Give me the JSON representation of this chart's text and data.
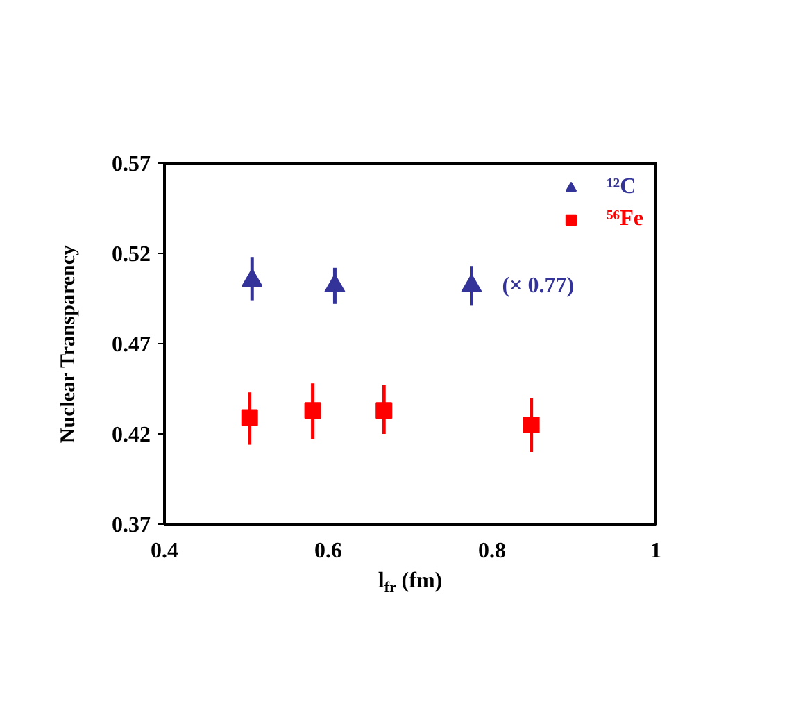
{
  "chart_data": {
    "type": "scatter",
    "xlabel": "l$_{fr}$ (fm)",
    "ylabel": "Nuclear Transparency",
    "xlim": [
      0.4,
      1
    ],
    "xticks": [
      0.4,
      0.6,
      0.8,
      1
    ],
    "ylim": [
      0.37,
      0.57
    ],
    "yticks": [
      0.37,
      0.42,
      0.47,
      0.52,
      0.57
    ],
    "legend": "top right",
    "series": [
      {
        "name": "¹²C",
        "color": "#333399",
        "marker": "triangle",
        "x": [
          0.507,
          0.608,
          0.775
        ],
        "values": [
          0.505,
          0.502,
          0.502
        ],
        "errors": [
          [
            0.494,
            0.518
          ],
          [
            0.492,
            0.512
          ],
          [
            0.491,
            0.513
          ]
        ]
      },
      {
        "name": "⁵⁶Fe",
        "color": "#ff0000",
        "marker": "square",
        "x": [
          0.504,
          0.581,
          0.668,
          0.848
        ],
        "values": [
          0.429,
          0.433,
          0.433,
          0.425
        ],
        "errors": [
          [
            0.414,
            0.443
          ],
          [
            0.417,
            0.448
          ],
          [
            0.42,
            0.447
          ],
          [
            0.41,
            0.44
          ]
        ]
      }
    ],
    "annotations": [
      {
        "text": "(× 0.77)",
        "x": 0.775,
        "y": 0.502
      }
    ]
  }
}
